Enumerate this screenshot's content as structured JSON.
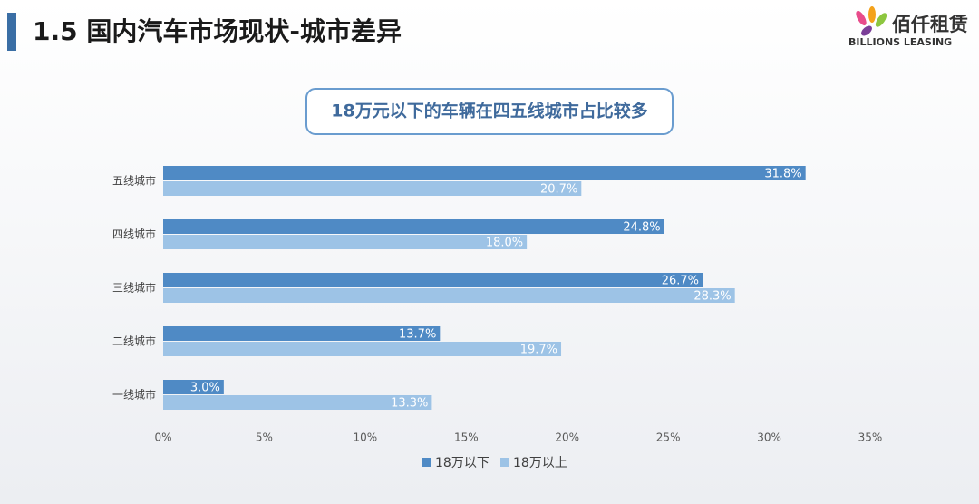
{
  "header": {
    "title": "1.5 国内汽车市场现状-城市差异",
    "logo_cn": "佰仟租赁",
    "logo_en": "BILLIONS LEASING"
  },
  "chart_data": {
    "type": "hbar",
    "title": "18万元以下的车辆在四五线城市占比较多",
    "categories": [
      "五线城市",
      "四线城市",
      "三线城市",
      "二线城市",
      "一线城市"
    ],
    "series": [
      {
        "name": "18万以下",
        "color": "#4f8ac5",
        "values": [
          31.8,
          24.8,
          26.7,
          13.7,
          3.0
        ],
        "value_labels": [
          "31.8%",
          "24.8%",
          "26.7%",
          "13.7%",
          "3.0%"
        ]
      },
      {
        "name": "18万以上",
        "color": "#9dc3e6",
        "values": [
          20.7,
          18.0,
          28.3,
          19.7,
          13.3
        ],
        "value_labels": [
          "20.7%",
          "18.0%",
          "28.3%",
          "19.7%",
          "13.3%"
        ]
      }
    ],
    "xlim": [
      0,
      35
    ],
    "xticks": [
      {
        "value": 0,
        "label": "0%"
      },
      {
        "value": 5,
        "label": "5%"
      },
      {
        "value": 10,
        "label": "10%"
      },
      {
        "value": 15,
        "label": "15%"
      },
      {
        "value": 20,
        "label": "20%"
      },
      {
        "value": 25,
        "label": "25%"
      },
      {
        "value": 30,
        "label": "30%"
      },
      {
        "value": 35,
        "label": "35%"
      }
    ],
    "legend": "bottom"
  }
}
